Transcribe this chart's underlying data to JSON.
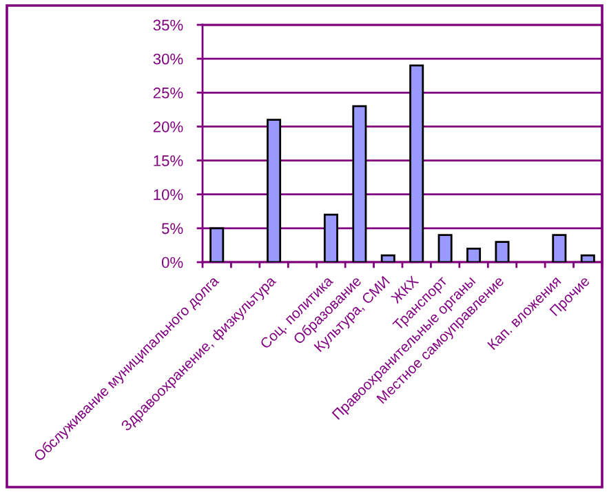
{
  "chart_data": {
    "type": "bar",
    "categories": [
      "Обслуживание муниципального долга",
      null,
      "Здравоохранение, физкультура",
      null,
      "Соц. политика",
      "Образование",
      "Культура, СМИ",
      "ЖКХ",
      "Транспорт",
      "Правоохранительные органы",
      "Местное самоуправление",
      null,
      "Кап. вложения",
      "Прочие"
    ],
    "values": [
      5,
      null,
      21,
      null,
      7,
      23,
      1,
      29,
      4,
      2,
      3,
      null,
      4,
      1
    ],
    "color": "#9999ff",
    "ylim": [
      0,
      35
    ],
    "yticks": [
      {
        "value": 0,
        "label": "0%"
      },
      {
        "value": 5,
        "label": "5%"
      },
      {
        "value": 10,
        "label": "10%"
      },
      {
        "value": 15,
        "label": "15%"
      },
      {
        "value": 20,
        "label": "20%"
      },
      {
        "value": 25,
        "label": "25%"
      },
      {
        "value": 30,
        "label": "30%"
      },
      {
        "value": 35,
        "label": "35%"
      }
    ],
    "grid": "y"
  }
}
